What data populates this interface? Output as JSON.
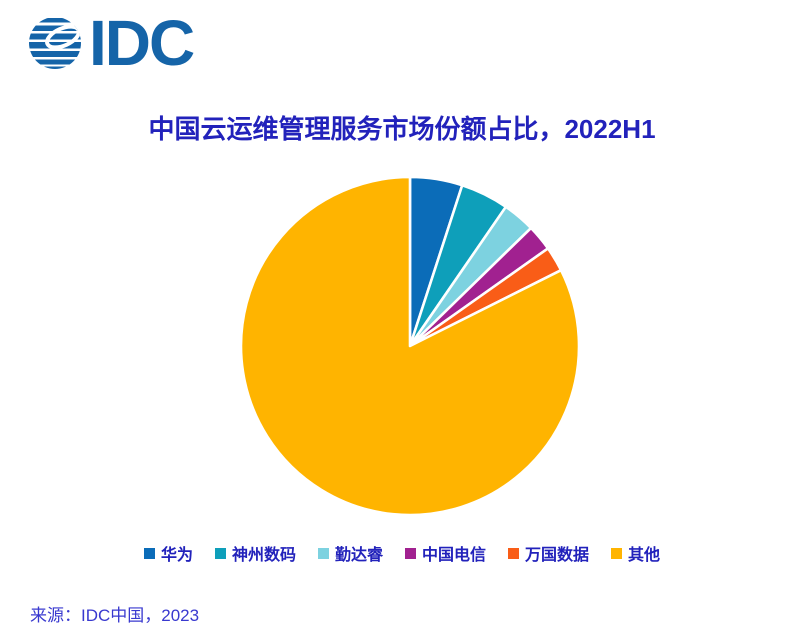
{
  "logo": {
    "text": "IDC",
    "color": "#1564A8"
  },
  "title": {
    "text": "中国云运维管理服务市场份额占比，2022H1",
    "color": "#2222BB"
  },
  "chart_data": {
    "type": "pie",
    "title": "中国云运维管理服务市场份额占比，2022H1",
    "unit": "percent",
    "start_angle_deg": 0,
    "direction": "clockwise",
    "legend_position": "bottom",
    "data_labels_shown": false,
    "gap_color": "#ffffff",
    "series": [
      {
        "name": "华为",
        "value": 5.0,
        "color": "#0B6CB8"
      },
      {
        "name": "神州数码",
        "value": 4.6,
        "color": "#0E9FBA"
      },
      {
        "name": "勤达睿",
        "value": 3.1,
        "color": "#7DD2E0"
      },
      {
        "name": "中国电信",
        "value": 2.5,
        "color": "#A12190"
      },
      {
        "name": "万国数据",
        "value": 2.4,
        "color": "#F95D17"
      },
      {
        "name": "其他",
        "value": 82.4,
        "color": "#FFB400"
      }
    ]
  },
  "source": {
    "text": "来源：IDC中国，2023"
  }
}
